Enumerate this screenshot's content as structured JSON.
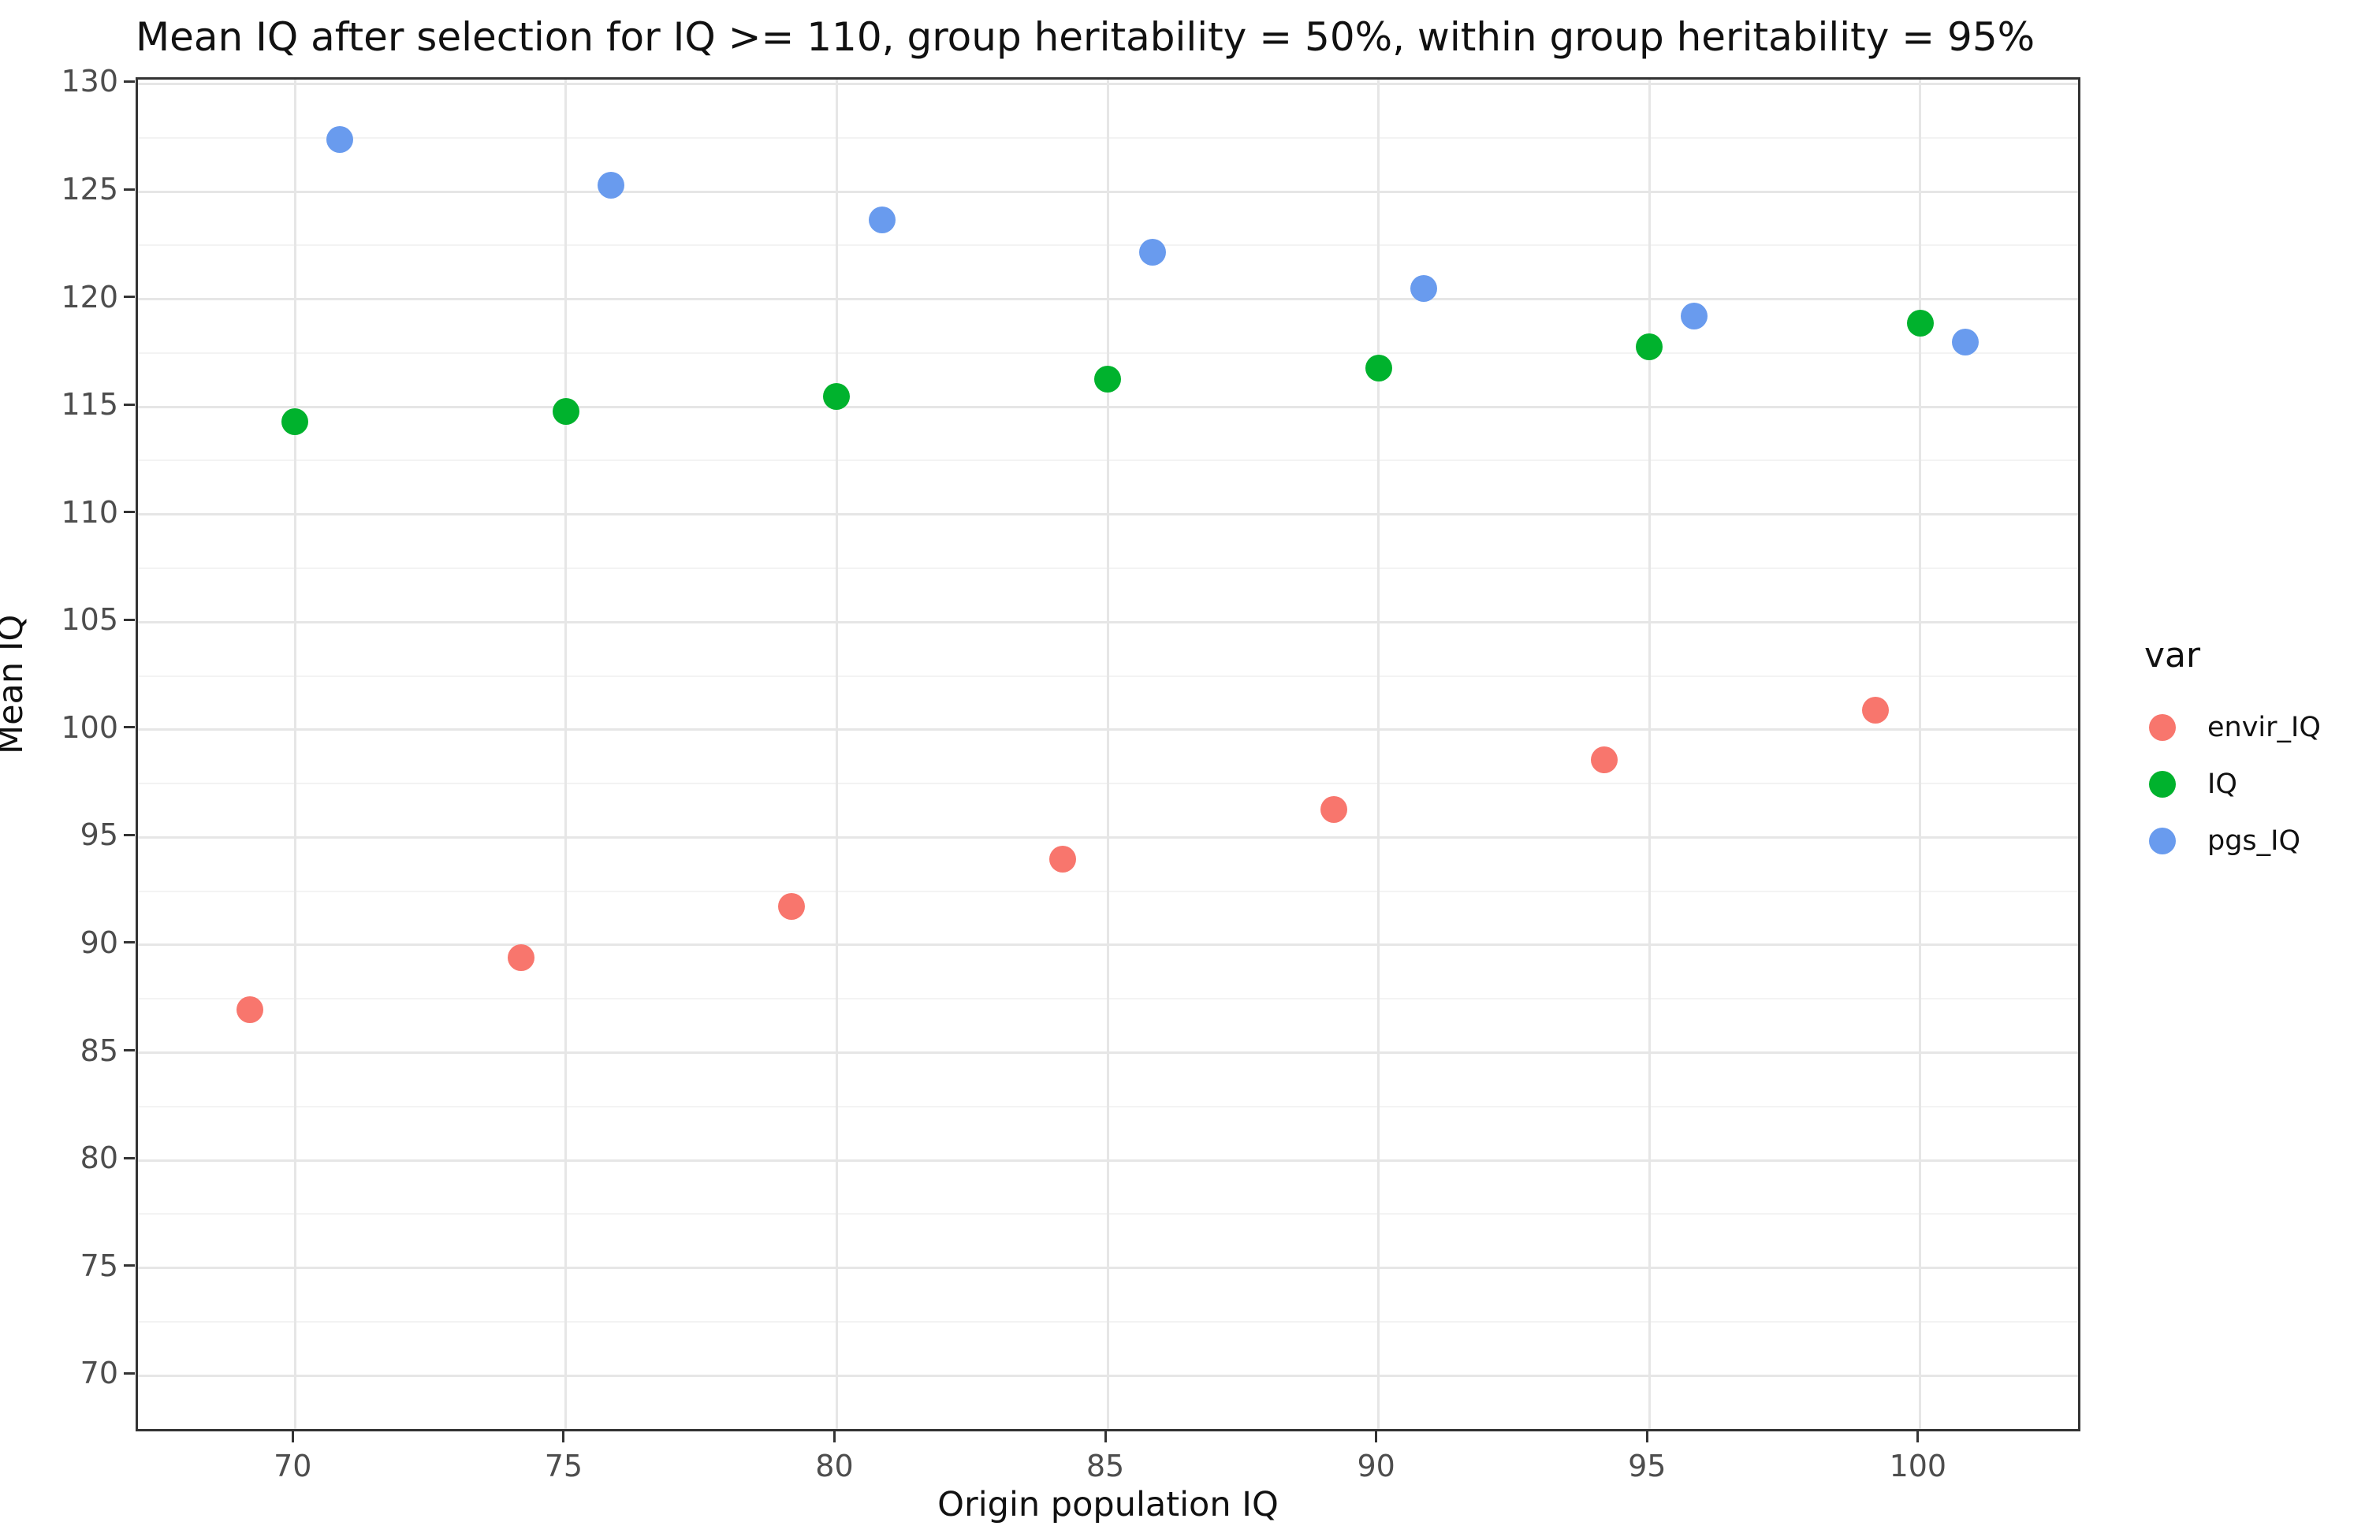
{
  "title": "Mean IQ after selection for IQ >= 110, group heritability = 50%, within group heritability = 95%",
  "chart_data": {
    "type": "scatter",
    "title": "Mean IQ after selection for IQ >= 110, group heritability = 50%, within group heritability = 95%",
    "xlabel": "Origin population IQ",
    "ylabel": "Mean IQ",
    "xlim": [
      67.1,
      103.0
    ],
    "ylim": [
      67.3,
      130.2
    ],
    "x_ticks": [
      70,
      75,
      80,
      85,
      90,
      95,
      100
    ],
    "y_ticks_major": [
      70,
      75,
      80,
      85,
      90,
      95,
      100,
      105,
      110,
      115,
      120,
      125,
      130
    ],
    "y_ticks_minor": [
      72.5,
      77.5,
      82.5,
      87.5,
      92.5,
      97.5,
      102.5,
      107.5,
      112.5,
      117.5,
      122.5,
      127.5
    ],
    "grid": "major and minor horizontal, major vertical only",
    "legend_title": "var",
    "legend_position": "right",
    "categories": [
      70,
      75,
      80,
      85,
      90,
      95,
      100
    ],
    "dodge_offset": 0.83,
    "series": [
      {
        "name": "envir_IQ",
        "color": "#F8766D",
        "x": [
          69.17,
          74.17,
          79.17,
          84.17,
          89.17,
          94.17,
          99.17
        ],
        "y": [
          87.0,
          89.4,
          91.8,
          94.0,
          96.3,
          98.6,
          100.9
        ]
      },
      {
        "name": "IQ",
        "color": "#00B22D",
        "x": [
          70,
          75,
          80,
          85,
          90,
          95,
          100
        ],
        "y": [
          114.3,
          114.8,
          115.5,
          116.3,
          116.8,
          117.8,
          118.9
        ]
      },
      {
        "name": "pgs_IQ",
        "color": "#699BEE",
        "x": [
          70.83,
          75.83,
          80.83,
          85.83,
          90.83,
          95.83,
          100.83
        ],
        "y": [
          127.4,
          125.3,
          123.7,
          122.2,
          120.5,
          119.2,
          118.0
        ]
      }
    ]
  }
}
